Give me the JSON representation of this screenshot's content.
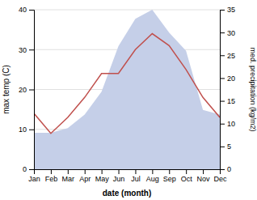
{
  "chart_data": {
    "type": "line",
    "xlabel": "date (month)",
    "ylabel": "max temp (C)",
    "y2label": "med. precipitation (kg/m2)",
    "categories": [
      "Jan",
      "Feb",
      "Mar",
      "Apr",
      "May",
      "Jun",
      "Jul",
      "Aug",
      "Sep",
      "Oct",
      "Nov",
      "Dec"
    ],
    "series": [
      {
        "type": "area",
        "axis": "y2",
        "color": "#c5cfe8",
        "values": [
          8,
          8,
          9,
          12,
          17,
          27,
          33,
          35,
          30,
          26,
          13,
          12
        ]
      },
      {
        "type": "line",
        "color": "#c0504d",
        "values": [
          14,
          9,
          13,
          18,
          24,
          24,
          30,
          34,
          31,
          25,
          18,
          13
        ]
      }
    ],
    "ylim": [
      0,
      40
    ],
    "yticks": [
      0,
      10,
      20,
      30,
      40
    ],
    "y2lim": [
      0,
      35
    ],
    "y2ticks": [
      0,
      5,
      10,
      15,
      20,
      25,
      30,
      35
    ],
    "grid": true
  }
}
